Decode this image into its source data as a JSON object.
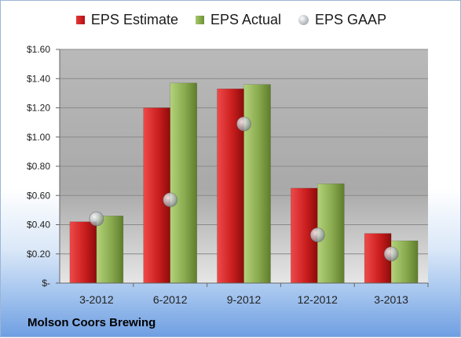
{
  "legend": {
    "estimate": "EPS Estimate",
    "actual": "EPS Actual",
    "gaap": "EPS GAAP"
  },
  "company": "Molson Coors Brewing",
  "chart_data": {
    "type": "bar",
    "categories": [
      "3-2012",
      "6-2012",
      "9-2012",
      "12-2012",
      "3-2013"
    ],
    "series": [
      {
        "name": "EPS Estimate",
        "kind": "bar",
        "color": "#cc1f1f",
        "values": [
          0.42,
          1.2,
          1.33,
          0.65,
          0.34
        ]
      },
      {
        "name": "EPS Actual",
        "kind": "bar",
        "color": "#8aaa4f",
        "values": [
          0.46,
          1.37,
          1.36,
          0.68,
          0.29
        ]
      },
      {
        "name": "EPS GAAP",
        "kind": "marker",
        "color": "#b0b4b8",
        "values": [
          0.44,
          0.57,
          1.09,
          0.33,
          0.2
        ]
      }
    ],
    "y_ticks": [
      "$1.60",
      "$1.40",
      "$1.20",
      "$1.00",
      "$0.80",
      "$0.60",
      "$0.40",
      "$0.20",
      "$-"
    ],
    "ylim": [
      0,
      1.6
    ],
    "grid": true,
    "legend_position": "top"
  }
}
